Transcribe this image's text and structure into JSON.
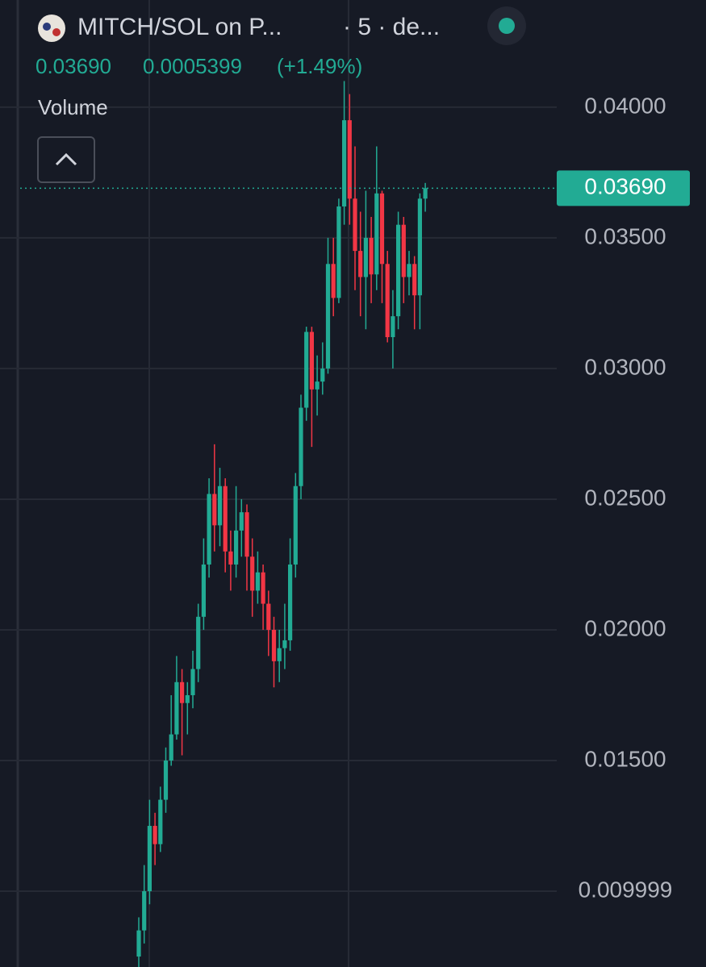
{
  "header": {
    "symbol": "MITCH/SOL on P...",
    "interval": "· 5 · de...",
    "price": "0.03690",
    "change": "0.0005399",
    "change_pct": "(+1.49%)",
    "volume_label": "Volume"
  },
  "chart_data": {
    "type": "candlestick",
    "up_color": "#22ab94",
    "down_color": "#f23645",
    "grid": true,
    "open": [
      0.0075,
      0.0085,
      0.01,
      0.0125,
      0.0118,
      0.0135,
      0.015,
      0.016,
      0.018,
      0.0172,
      0.0175,
      0.0185,
      0.0205,
      0.0225,
      0.0252,
      0.024,
      0.0255,
      0.023,
      0.0225,
      0.0238,
      0.0245,
      0.0228,
      0.0215,
      0.0222,
      0.021,
      0.02,
      0.0188,
      0.0193,
      0.0196,
      0.0225,
      0.0255,
      0.0285,
      0.0314,
      0.0292,
      0.0295,
      0.03,
      0.034,
      0.0327,
      0.0362,
      0.0395,
      0.0365,
      0.0345,
      0.0335,
      0.035,
      0.0336,
      0.0367,
      0.034,
      0.0312,
      0.032,
      0.0355,
      0.0335,
      0.034,
      0.0328,
      0.0365
    ],
    "high": [
      0.009,
      0.011,
      0.0135,
      0.013,
      0.014,
      0.0155,
      0.0175,
      0.019,
      0.0185,
      0.018,
      0.0192,
      0.021,
      0.0235,
      0.0258,
      0.0271,
      0.0262,
      0.0258,
      0.0238,
      0.0255,
      0.025,
      0.0248,
      0.0235,
      0.023,
      0.0225,
      0.0215,
      0.0205,
      0.02,
      0.021,
      0.0235,
      0.026,
      0.029,
      0.0316,
      0.0316,
      0.0305,
      0.031,
      0.035,
      0.035,
      0.0365,
      0.041,
      0.0405,
      0.0385,
      0.036,
      0.0368,
      0.0358,
      0.0385,
      0.0368,
      0.0345,
      0.033,
      0.036,
      0.0358,
      0.0345,
      0.0343,
      0.0367,
      0.0371
    ],
    "low": [
      0.0071,
      0.008,
      0.0095,
      0.011,
      0.0115,
      0.013,
      0.0148,
      0.0158,
      0.0152,
      0.016,
      0.017,
      0.018,
      0.02,
      0.022,
      0.023,
      0.0232,
      0.0222,
      0.0215,
      0.022,
      0.0228,
      0.0215,
      0.0205,
      0.021,
      0.02,
      0.019,
      0.0178,
      0.018,
      0.0185,
      0.0192,
      0.022,
      0.025,
      0.028,
      0.027,
      0.0282,
      0.029,
      0.0298,
      0.032,
      0.0325,
      0.0355,
      0.0355,
      0.033,
      0.032,
      0.0315,
      0.0325,
      0.033,
      0.0325,
      0.031,
      0.03,
      0.0315,
      0.0325,
      0.0328,
      0.0315,
      0.0315,
      0.036
    ],
    "close": [
      0.0085,
      0.01,
      0.0125,
      0.0118,
      0.0135,
      0.015,
      0.016,
      0.018,
      0.0172,
      0.0175,
      0.0185,
      0.0205,
      0.0225,
      0.0252,
      0.024,
      0.0255,
      0.023,
      0.0225,
      0.0238,
      0.0245,
      0.0228,
      0.0215,
      0.0222,
      0.021,
      0.02,
      0.0188,
      0.0193,
      0.0196,
      0.0225,
      0.0255,
      0.0285,
      0.0314,
      0.0292,
      0.0295,
      0.03,
      0.034,
      0.0327,
      0.0362,
      0.0395,
      0.0365,
      0.0345,
      0.0335,
      0.035,
      0.0336,
      0.0367,
      0.034,
      0.0312,
      0.032,
      0.0355,
      0.0335,
      0.034,
      0.0328,
      0.0365,
      0.0369
    ],
    "ylim": [
      0.0071,
      0.0441
    ],
    "yticks": [
      {
        "value": 0.009999,
        "label": "0.009999"
      },
      {
        "value": 0.015,
        "label": "0.01500"
      },
      {
        "value": 0.02,
        "label": "0.02000"
      },
      {
        "value": 0.025,
        "label": "0.02500"
      },
      {
        "value": 0.03,
        "label": "0.03000"
      },
      {
        "value": 0.035,
        "label": "0.03500"
      },
      {
        "value": 0.04,
        "label": "0.04000"
      }
    ],
    "last_price": {
      "value": 0.0369,
      "label": "0.03690"
    }
  }
}
